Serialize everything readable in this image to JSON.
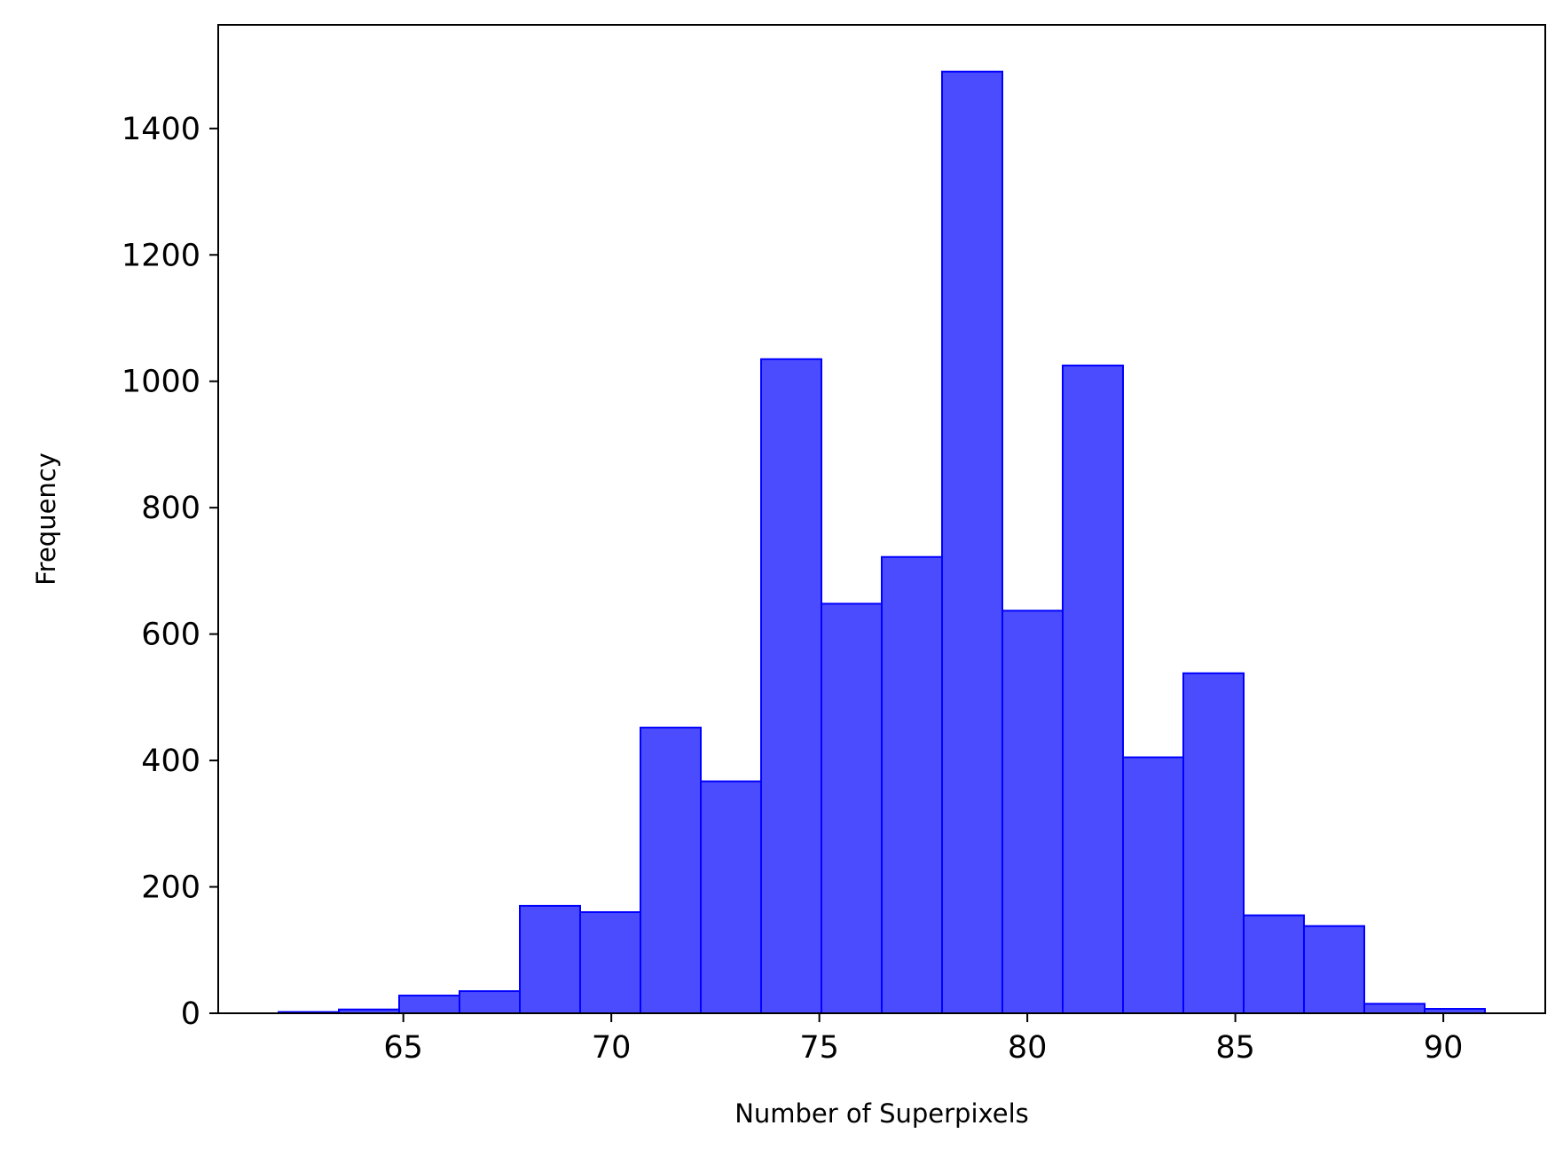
{
  "chart_data": {
    "type": "bar",
    "subtype": "histogram",
    "title": "",
    "xlabel": "Number of Superpixels",
    "ylabel": "Frequency",
    "xlim": [
      60.55,
      92.45
    ],
    "ylim": [
      0,
      1564
    ],
    "x_ticks": [
      65,
      70,
      75,
      80,
      85,
      90
    ],
    "y_ticks": [
      0,
      200,
      400,
      600,
      800,
      1000,
      1200,
      1400
    ],
    "bin_edges": [
      62.0,
      63.45,
      64.9,
      66.35,
      67.8,
      69.25,
      70.7,
      72.15,
      73.6,
      75.05,
      76.5,
      77.95,
      79.4,
      80.85,
      82.3,
      83.75,
      85.2,
      86.65,
      88.1,
      89.55,
      91.0
    ],
    "values": [
      2,
      6,
      28,
      35,
      170,
      160,
      452,
      367,
      1035,
      648,
      722,
      1490,
      637,
      1025,
      405,
      538,
      155,
      138,
      15,
      7
    ],
    "grid": false,
    "legend": "none",
    "colors": {
      "bar_fill": "#0000ff",
      "bar_fill_opacity": 0.7,
      "bar_edge": "#0000ff",
      "axis": "#000000"
    }
  }
}
